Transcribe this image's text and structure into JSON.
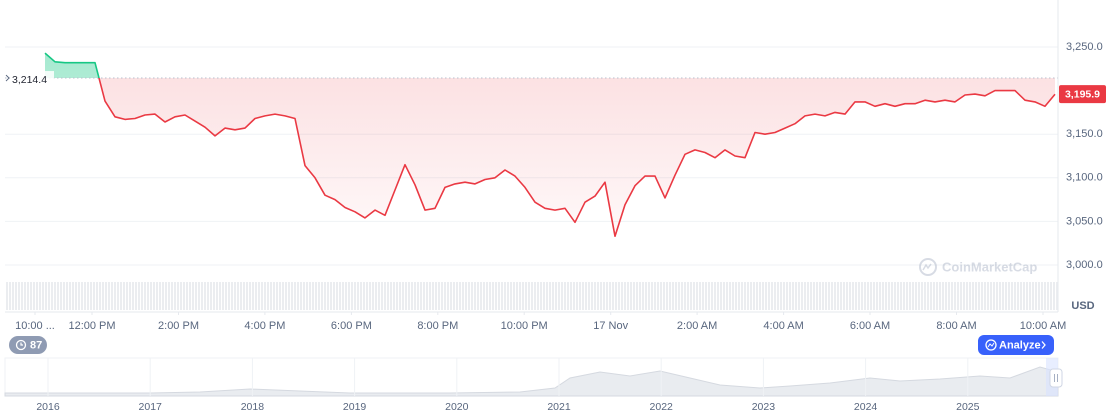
{
  "chart_data": {
    "type": "line",
    "values": [
      3243,
      3233,
      3232,
      3232,
      3232,
      3232,
      3188,
      3170,
      3167,
      3168,
      3172,
      3173,
      3164,
      3170,
      3172,
      3165,
      3158,
      3148,
      3157,
      3155,
      3157,
      3168,
      3171,
      3173,
      3171,
      3168,
      3114,
      3100,
      3080,
      3075,
      3066,
      3061,
      3054,
      3063,
      3057,
      3086,
      3115,
      3092,
      3063,
      3065,
      3089,
      3093,
      3095,
      3093,
      3098,
      3100,
      3109,
      3102,
      3089,
      3072,
      3065,
      3063,
      3065,
      3049,
      3072,
      3079,
      3095,
      3033,
      3069,
      3091,
      3102,
      3102,
      3077,
      3103,
      3127,
      3132,
      3129,
      3123,
      3132,
      3125,
      3123,
      3152,
      3150,
      3152,
      3157,
      3162,
      3171,
      3173,
      3171,
      3175,
      3173,
      3187,
      3187,
      3182,
      3185,
      3182,
      3185,
      3185,
      3189,
      3187,
      3189,
      3187,
      3195,
      3196,
      3194,
      3200,
      3200,
      3200,
      3189,
      3187,
      3182,
      3195.9
    ],
    "color": "#ea3943",
    "up_color": "#16c784",
    "xlim": [
      -4,
      101.3
    ],
    "xticks": [
      {
        "value": -1,
        "label": "10:00 ..."
      },
      {
        "value": 4.7,
        "label": "12:00 PM"
      },
      {
        "value": 13.35,
        "label": "2:00 PM"
      },
      {
        "value": 21.99,
        "label": "4:00 PM"
      },
      {
        "value": 30.64,
        "label": "6:00 PM"
      },
      {
        "value": 39.28,
        "label": "8:00 PM"
      },
      {
        "value": 47.92,
        "label": "10:00 PM"
      },
      {
        "value": 56.57,
        "label": "17 Nov"
      },
      {
        "value": 65.21,
        "label": "2:00 AM"
      },
      {
        "value": 73.86,
        "label": "4:00 AM"
      },
      {
        "value": 82.5,
        "label": "6:00 AM"
      },
      {
        "value": 91.15,
        "label": "8:00 AM"
      },
      {
        "value": 99.8,
        "label": "10:00 AM"
      }
    ],
    "ylim": [
      2948.4,
      3303.9
    ],
    "yticks": [
      {
        "value": 3000,
        "label": "3,000.0"
      },
      {
        "value": 3050,
        "label": "3,050.0"
      },
      {
        "value": 3100,
        "label": "3,100.0"
      },
      {
        "value": 3150,
        "label": "3,150.0"
      },
      {
        "value": 3250,
        "label": "3,250.0"
      }
    ],
    "grid": true,
    "reference": {
      "value": 3214.4,
      "label": "3,214.4"
    },
    "last": {
      "value": 3195.9,
      "label": "3,195.9"
    },
    "unit": "USD",
    "watermark": "CoinMarketCap"
  },
  "navigator": {
    "years": [
      "2016",
      "2017",
      "2018",
      "2019",
      "2020",
      "2021",
      "2022",
      "2023",
      "2024",
      "2025"
    ]
  },
  "controls": {
    "badge": "87",
    "analyze_button": "Analyze"
  }
}
